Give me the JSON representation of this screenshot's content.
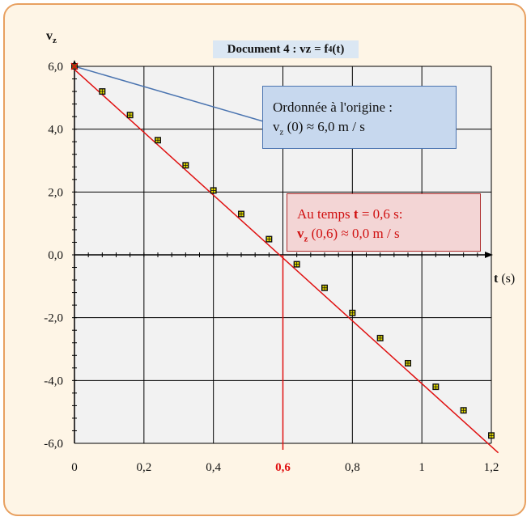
{
  "chart_data": {
    "type": "scatter",
    "title": "Document 4 : vz = f4(t)",
    "ylabel": "vz",
    "xlabel": "t (s)",
    "xlim": [
      0,
      1.2
    ],
    "ylim": [
      -6.0,
      6.0
    ],
    "x_ticks": [
      "0",
      "0,2",
      "0,4",
      "0,6",
      "0,8",
      "1",
      "1,2"
    ],
    "y_ticks": [
      "6,0",
      "4,0",
      "2,0",
      "0,0",
      "-2,0",
      "-4,0",
      "-6,0"
    ],
    "grid": true,
    "series": [
      {
        "marker": "square",
        "x": [
          0,
          0.08,
          0.16,
          0.24,
          0.32,
          0.4,
          0.48,
          0.56,
          0.64,
          0.72,
          0.8,
          0.88,
          0.96,
          1.04,
          1.12,
          1.2
        ],
        "y": [
          6.0,
          5.2,
          4.45,
          3.65,
          2.85,
          2.05,
          1.3,
          0.5,
          -0.3,
          -1.05,
          -1.85,
          -2.65,
          -3.45,
          -4.2,
          -4.95,
          -5.75
        ]
      }
    ],
    "fit_line": {
      "x": [
        0,
        1.22
      ],
      "y": [
        5.9,
        -6.3
      ],
      "color": "#e01010"
    },
    "marker_line_x": 0.6,
    "marker_line_color": "#e01010",
    "annotations": {
      "origin": {
        "line1": "Ordonnée à l'origine :",
        "v": "v",
        "sub": "z",
        "rest": "(0) ≈ 6,0 m / s"
      },
      "zero": {
        "line1_a": "Au temps ",
        "line1_b": "t",
        "line1_c": " = 0,6 s:",
        "v": "v",
        "sub": "z",
        "rest": "(0,6) ≈ 0,0 m / s"
      }
    },
    "title_parts": {
      "main": "Document 4 : vz = f",
      "sub": "4",
      "end": "(t)"
    },
    "ylabel_parts": {
      "v": "v",
      "sub": "z"
    },
    "xlabel_parts": {
      "t": "t",
      "unit": " (s)"
    }
  },
  "colors": {
    "frame": "#e8a060",
    "background": "#fef5e6",
    "plot_bg": "#f2f2f2",
    "fit": "#e01010",
    "callout_blue": "#4a74b0"
  }
}
